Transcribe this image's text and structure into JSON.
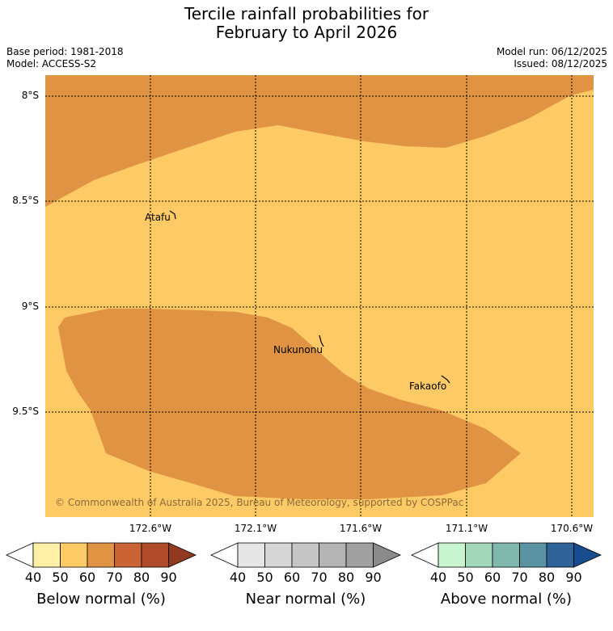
{
  "title": {
    "line1": "Tercile rainfall probabilities for",
    "line2": "February to April 2026"
  },
  "meta": {
    "base_period": "Base period: 1981-2018",
    "model": "Model: ACCESS-S2",
    "model_run": "Model run: 06/12/2025",
    "issued": "Issued: 08/12/2025"
  },
  "map": {
    "copyright": "© Commonwealth of Australia 2025, Bureau of Meteorology, supported by COSPPac",
    "lat_labels": [
      "8°S",
      "8.5°S",
      "9°S",
      "9.5°S"
    ],
    "lon_labels": [
      "172.6°W",
      "172.1°W",
      "171.6°W",
      "171.1°W",
      "170.6°W"
    ],
    "places": [
      {
        "name": "Atafu"
      },
      {
        "name": "Nukunonu"
      },
      {
        "name": "Fakaofo"
      }
    ],
    "colors": {
      "below_50_60": "#fdca65",
      "below_60_70": "#e09443"
    }
  },
  "colorbars": [
    {
      "title": "Below normal (%)",
      "ticks": [
        "40",
        "50",
        "60",
        "70",
        "80",
        "90"
      ],
      "colors": [
        "#ffffff",
        "#fef0a6",
        "#fdca65",
        "#e09443",
        "#cb6435",
        "#b14c2b",
        "#913a20"
      ]
    },
    {
      "title": "Near normal (%)",
      "ticks": [
        "40",
        "50",
        "60",
        "70",
        "80",
        "90"
      ],
      "colors": [
        "#ffffff",
        "#e6e6e6",
        "#d6d6d6",
        "#c6c6c6",
        "#b4b4b4",
        "#a0a0a0",
        "#8b8b8b"
      ]
    },
    {
      "title": "Above normal (%)",
      "ticks": [
        "40",
        "50",
        "60",
        "70",
        "80",
        "90"
      ],
      "colors": [
        "#ffffff",
        "#c8f5d0",
        "#a2d6ba",
        "#80b8ae",
        "#5a93a1",
        "#2e6298",
        "#194c8c"
      ]
    }
  ]
}
